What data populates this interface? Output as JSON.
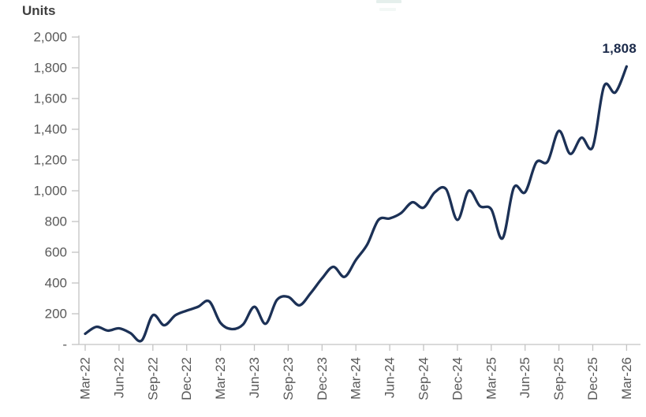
{
  "chart": {
    "units_label": "Units",
    "end_data_label": "1,808"
  },
  "chart_data": {
    "type": "line",
    "title": "",
    "ylabel": "Units",
    "xlabel": "",
    "grid": false,
    "legend": "cropped off top edge",
    "line_color": "#1c3156",
    "axis_color": "#c4c4c4",
    "tick_label_color": "#595959",
    "end_label": "1,808",
    "ylim": [
      0,
      2000
    ],
    "y_tick_values": [
      0,
      200,
      400,
      600,
      800,
      1000,
      1200,
      1400,
      1600,
      1800,
      2000
    ],
    "y_ticklabels": [
      "-",
      "200",
      "400",
      "600",
      "800",
      "1,000",
      "1,200",
      "1,400",
      "1,600",
      "1,800",
      "2,000"
    ],
    "x_ticklabels": [
      "Mar-22",
      "Jun-22",
      "Sep-22",
      "Dec-22",
      "Mar-23",
      "Jun-23",
      "Sep-23",
      "Dec-23",
      "Mar-24",
      "Jun-24",
      "Sep-24",
      "Dec-24",
      "Mar-25",
      "Jun-25",
      "Sep-25",
      "Dec-25",
      "Mar-26"
    ],
    "x": [
      "Mar-22",
      "Apr-22",
      "May-22",
      "Jun-22",
      "Jul-22",
      "Aug-22",
      "Sep-22",
      "Oct-22",
      "Nov-22",
      "Dec-22",
      "Jan-23",
      "Feb-23",
      "Mar-23",
      "Apr-23",
      "May-23",
      "Jun-23",
      "Jul-23",
      "Aug-23",
      "Sep-23",
      "Oct-23",
      "Nov-23",
      "Dec-23",
      "Jan-24",
      "Feb-24",
      "Mar-24",
      "Apr-24",
      "May-24",
      "Jun-24",
      "Jul-24",
      "Aug-24",
      "Sep-24",
      "Oct-24",
      "Nov-24",
      "Dec-24",
      "Jan-25",
      "Feb-25",
      "Mar-25",
      "Apr-25",
      "May-25",
      "Jun-25",
      "Jul-25",
      "Aug-25",
      "Sep-25",
      "Oct-25",
      "Nov-25",
      "Dec-25",
      "Jan-26",
      "Feb-26",
      "Mar-26"
    ],
    "values": [
      70,
      115,
      90,
      105,
      75,
      25,
      190,
      125,
      190,
      220,
      245,
      280,
      140,
      100,
      130,
      245,
      135,
      290,
      310,
      255,
      335,
      430,
      505,
      440,
      550,
      650,
      810,
      820,
      855,
      925,
      890,
      990,
      1010,
      810,
      1000,
      900,
      880,
      690,
      1020,
      990,
      1185,
      1190,
      1390,
      1240,
      1345,
      1285,
      1680,
      1640,
      1808
    ]
  }
}
